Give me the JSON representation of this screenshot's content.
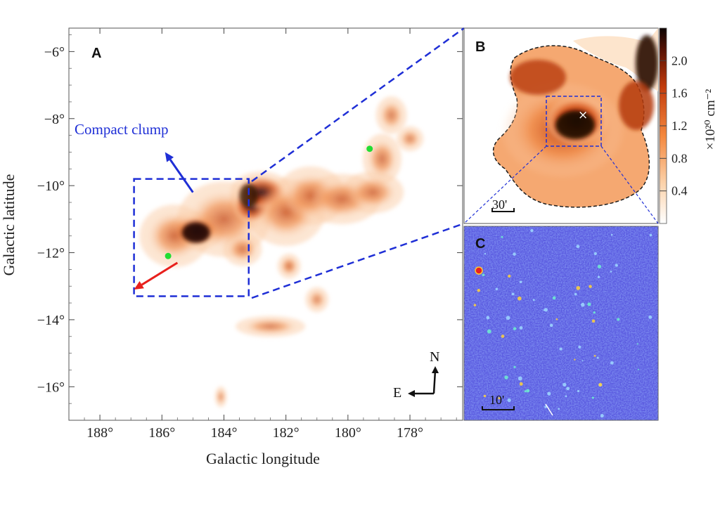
{
  "chart_data": [
    {
      "panel": "A",
      "type": "heatmap",
      "title": "",
      "xlabel": "Galactic longitude",
      "ylabel": "Galactic latitude",
      "xlim": [
        189,
        176.3
      ],
      "ylim": [
        -17,
        -5.3
      ],
      "x_ticks": [
        188,
        186,
        184,
        182,
        180,
        178
      ],
      "x_tick_labels": [
        "188°",
        "186°",
        "184°",
        "182°",
        "180°",
        "178°"
      ],
      "y_ticks": [
        -6,
        -8,
        -10,
        -12,
        -14,
        -16
      ],
      "y_tick_labels": [
        "−6°",
        "−8°",
        "−10°",
        "−12°",
        "−14°",
        "−16°"
      ],
      "annotations": {
        "compact_clump_label": "Compact clump",
        "zoom_box_l": [
          186.9,
          183.2
        ],
        "zoom_box_b": [
          -13.3,
          -9.8
        ],
        "green_markers": [
          {
            "l": 185.8,
            "b": -12.1
          },
          {
            "l": 179.3,
            "b": -8.9
          }
        ],
        "arrows": [
          {
            "color": "blue",
            "meaning": "toward compact clump",
            "from": [
              185.0,
              -10.2
            ],
            "to": [
              185.9,
              -9.0
            ]
          },
          {
            "color": "red",
            "meaning": "motion direction",
            "from": [
              185.5,
              -12.3
            ],
            "to": [
              186.9,
              -13.1
            ]
          }
        ],
        "compass": {
          "north": "N",
          "east": "E"
        }
      },
      "clouds": [
        {
          "l": 184.9,
          "b": -11.35,
          "rl": 0.7,
          "rb": 0.45,
          "w": 1.0
        },
        {
          "l": 185.6,
          "b": -11.5,
          "rl": 0.9,
          "rb": 0.75,
          "w": 0.55
        },
        {
          "l": 184.0,
          "b": -11.0,
          "rl": 1.2,
          "rb": 0.9,
          "w": 0.55
        },
        {
          "l": 183.1,
          "b": -10.6,
          "rl": 0.6,
          "rb": 0.5,
          "w": 0.75
        },
        {
          "l": 182.8,
          "b": -10.2,
          "rl": 0.8,
          "rb": 0.5,
          "w": 0.7
        },
        {
          "l": 182.0,
          "b": -10.8,
          "rl": 1.0,
          "rb": 0.8,
          "w": 0.6
        },
        {
          "l": 181.2,
          "b": -10.3,
          "rl": 0.9,
          "rb": 0.7,
          "w": 0.55
        },
        {
          "l": 180.2,
          "b": -10.4,
          "rl": 1.0,
          "rb": 0.6,
          "w": 0.5
        },
        {
          "l": 179.2,
          "b": -10.2,
          "rl": 0.8,
          "rb": 0.5,
          "w": 0.45
        },
        {
          "l": 178.9,
          "b": -9.2,
          "rl": 0.5,
          "rb": 0.6,
          "w": 0.45
        },
        {
          "l": 178.6,
          "b": -7.9,
          "rl": 0.4,
          "rb": 0.45,
          "w": 0.35
        },
        {
          "l": 178.0,
          "b": -8.6,
          "rl": 0.35,
          "rb": 0.3,
          "w": 0.3
        },
        {
          "l": 181.9,
          "b": -12.4,
          "rl": 0.3,
          "rb": 0.3,
          "w": 0.6
        },
        {
          "l": 183.4,
          "b": -11.9,
          "rl": 0.5,
          "rb": 0.4,
          "w": 0.4
        },
        {
          "l": 182.5,
          "b": -14.2,
          "rl": 0.9,
          "rb": 0.25,
          "w": 0.35
        },
        {
          "l": 181.0,
          "b": -13.4,
          "rl": 0.3,
          "rb": 0.3,
          "w": 0.25
        },
        {
          "l": 184.1,
          "b": -16.3,
          "rl": 0.15,
          "rb": 0.25,
          "w": 0.25
        }
      ]
    },
    {
      "panel": "B",
      "type": "heatmap",
      "colorbar": {
        "title": "×10²⁰ cm⁻²",
        "ticks": [
          0.4,
          0.8,
          1.2,
          1.6,
          2.0
        ],
        "tick_labels": [
          "0.4",
          "0.8",
          "1.2",
          "1.6",
          "2.0"
        ],
        "range": [
          0.0,
          2.4
        ]
      },
      "scalebar_label": "30'",
      "marker": "×"
    },
    {
      "panel": "C",
      "type": "heatmap",
      "scalebar_label": "10'"
    }
  ],
  "panels": {
    "a": {
      "letter": "A"
    },
    "b": {
      "letter": "B"
    },
    "c": {
      "letter": "C"
    }
  },
  "colors": {
    "box_blue": "#1f2fd6",
    "arrow_blue": "#1f2fd6",
    "arrow_red": "#e8201c",
    "marker_green": "#22dd33",
    "cloud_dark": "#1a0a06",
    "cloud_mid": "#c8451a",
    "cloud_light": "#f6b98a",
    "panel_c_bg": "#5a5ae0"
  }
}
